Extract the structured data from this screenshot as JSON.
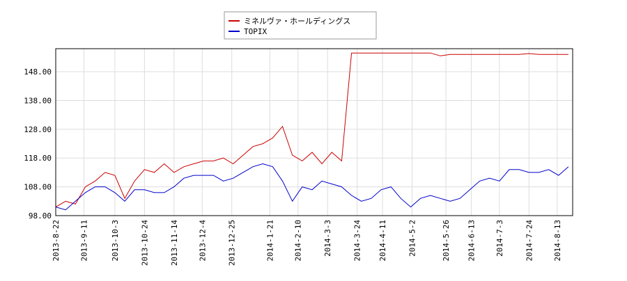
{
  "chart_data": {
    "type": "line",
    "x": [
      "2013-8-22",
      "2013-8-29",
      "2013-9-5",
      "2013-9-12",
      "2013-9-19",
      "2013-9-26",
      "2013-10-3",
      "2013-10-10",
      "2013-10-17",
      "2013-10-24",
      "2013-10-31",
      "2013-11-7",
      "2013-11-14",
      "2013-11-21",
      "2013-11-28",
      "2013-12-5",
      "2013-12-12",
      "2013-12-19",
      "2013-12-26",
      "2014-1-2",
      "2014-1-9",
      "2014-1-16",
      "2014-1-23",
      "2014-1-30",
      "2014-2-6",
      "2014-2-13",
      "2014-2-20",
      "2014-2-27",
      "2014-3-6",
      "2014-3-13",
      "2014-3-20",
      "2014-3-27",
      "2014-4-3",
      "2014-4-10",
      "2014-4-17",
      "2014-4-24",
      "2014-5-1",
      "2014-5-8",
      "2014-5-15",
      "2014-5-22",
      "2014-5-29",
      "2014-6-5",
      "2014-6-12",
      "2014-6-19",
      "2014-6-26",
      "2014-7-3",
      "2014-7-10",
      "2014-7-17",
      "2014-7-24",
      "2014-7-31",
      "2014-8-7",
      "2014-8-14",
      "2014-8-21"
    ],
    "series": [
      {
        "name": "ミネルヴァ・ホールディングス",
        "color": "#cc0000",
        "values": [
          101,
          103,
          102,
          108,
          110,
          113,
          112,
          104,
          110,
          114,
          113,
          116,
          113,
          115,
          116,
          117,
          117,
          118,
          116,
          119,
          122,
          123,
          125,
          129,
          119,
          117,
          120,
          116,
          120,
          117,
          154.5,
          154.5,
          154.5,
          154.5,
          154.5,
          154.5,
          154.5,
          154.5,
          154.5,
          153.5,
          154,
          154,
          154,
          154,
          154,
          154,
          154,
          154,
          154.3,
          154,
          154,
          154,
          154
        ]
      },
      {
        "name": "TOPIX",
        "color": "#0000cc",
        "values": [
          101,
          100,
          103,
          106,
          108,
          108,
          106,
          103,
          107,
          107,
          106,
          106,
          108,
          111,
          112,
          112,
          112,
          110,
          111,
          113,
          115,
          116,
          115,
          110,
          103,
          108,
          107,
          110,
          109,
          108,
          105,
          103,
          104,
          107,
          108,
          104,
          101,
          104,
          105,
          104,
          103,
          104,
          107,
          110,
          111,
          110,
          114,
          114,
          113,
          113,
          114,
          112,
          115
        ]
      }
    ],
    "xlim": [
      "2013-8-22",
      "2014-8-24"
    ],
    "xticks": [
      "2013-8-22",
      "2013-9-11",
      "2013-10-3",
      "2013-10-24",
      "2013-11-14",
      "2013-12-4",
      "2013-12-25",
      "2014-1-21",
      "2014-2-10",
      "2014-3-3",
      "2014-3-24",
      "2014-4-11",
      "2014-5-2",
      "2014-5-26",
      "2014-6-13",
      "2014-7-3",
      "2014-7-24",
      "2014-8-13"
    ],
    "ylim": [
      98,
      156
    ],
    "yticks": [
      {
        "value": 98,
        "label": "98.00"
      },
      {
        "value": 108,
        "label": "108.00"
      },
      {
        "value": 118,
        "label": "118.00"
      },
      {
        "value": 128,
        "label": "128.00"
      },
      {
        "value": 138,
        "label": "138.00"
      },
      {
        "value": 148,
        "label": "148.00"
      }
    ],
    "grid": true
  }
}
